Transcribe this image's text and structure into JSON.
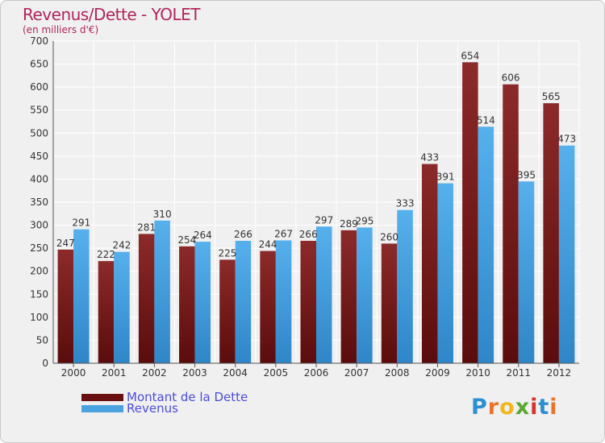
{
  "header": {
    "title": "Revenus/Dette - YOLET",
    "subtitle": "(en milliers d'€)"
  },
  "legend": {
    "debt_label": "Montant de la Dette",
    "revenue_label": "Revenus"
  },
  "logo": {
    "text": "Proxiti",
    "letters": [
      "P",
      "r",
      "o",
      "x",
      "i",
      "t",
      "i"
    ],
    "letter_colors": [
      "#2c8fd0",
      "#e8742a",
      "#f2b61c",
      "#5aa832",
      "#d4342c",
      "#2c8fd0",
      "#e8742a"
    ]
  },
  "colors": {
    "debt": "#7a1c1c",
    "revenue": "#4aa3e0",
    "title": "#b0255c",
    "legend_text": "#4c4cd8"
  },
  "chart_data": {
    "type": "bar",
    "title": "Revenus/Dette - YOLET",
    "subtitle": "(en milliers d'€)",
    "categories": [
      "2000",
      "2001",
      "2002",
      "2003",
      "2004",
      "2005",
      "2006",
      "2007",
      "2008",
      "2009",
      "2010",
      "2011",
      "2012"
    ],
    "series": [
      {
        "name": "Montant de la Dette",
        "color": "#7a1c1c",
        "values": [
          247,
          222,
          281,
          254,
          225,
          244,
          266,
          289,
          260,
          433,
          654,
          606,
          565
        ]
      },
      {
        "name": "Revenus",
        "color": "#4aa3e0",
        "values": [
          291,
          242,
          310,
          264,
          266,
          267,
          297,
          295,
          333,
          391,
          514,
          395,
          473
        ]
      }
    ],
    "ylim": [
      0,
      700
    ],
    "yticks": [
      0,
      50,
      100,
      150,
      200,
      250,
      300,
      350,
      400,
      450,
      500,
      550,
      600,
      650,
      700
    ],
    "grid": true,
    "legend_position": "bottom-left"
  }
}
